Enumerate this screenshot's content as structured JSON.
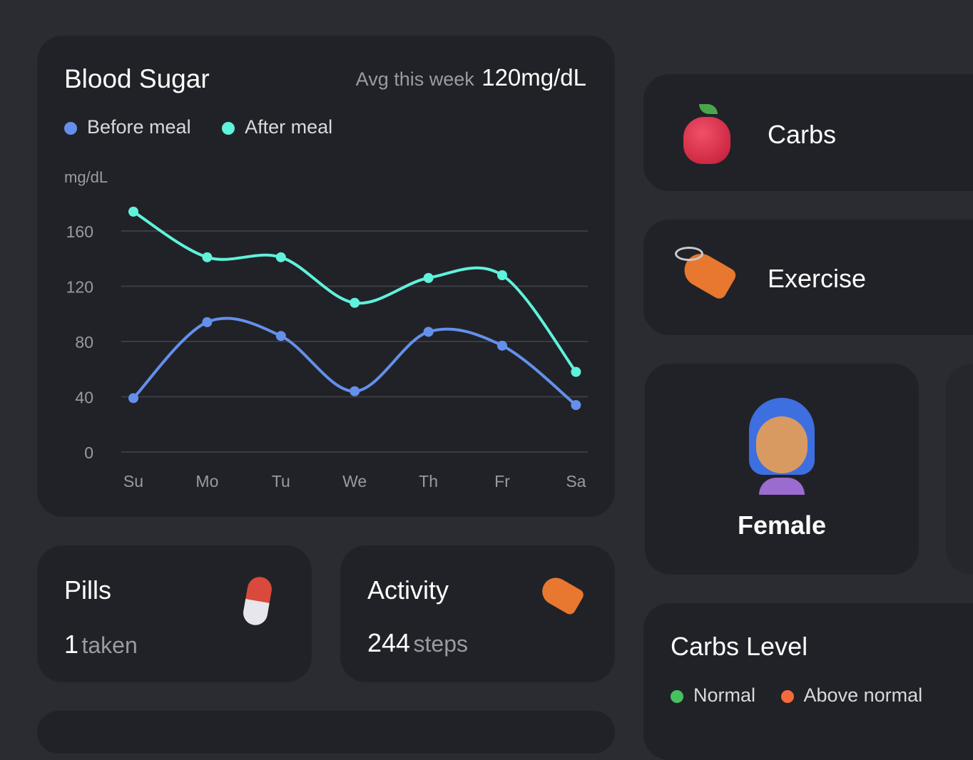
{
  "blood_sugar": {
    "title": "Blood Sugar",
    "avg_label": "Avg this week",
    "avg_value": "120mg/dL"
  },
  "chart_data": {
    "type": "line",
    "ylabel": "mg/dL",
    "categories": [
      "Su",
      "Mo",
      "Tu",
      "We",
      "Th",
      "Fr",
      "Sa"
    ],
    "ylim": [
      0,
      160
    ],
    "yticks": [
      0,
      40,
      80,
      120,
      160
    ],
    "grid": true,
    "legend": "top-left",
    "series": [
      {
        "name": "Before meal",
        "color": "#6490ec",
        "values": [
          39,
          94,
          84,
          44,
          87,
          77,
          34
        ]
      },
      {
        "name": "After meal",
        "color": "#5ff2dc",
        "values": [
          174,
          141,
          141,
          108,
          126,
          128,
          58
        ]
      }
    ]
  },
  "pills": {
    "title": "Pills",
    "count": "1",
    "unit": "taken",
    "icon": "pill-icon"
  },
  "activity": {
    "title": "Activity",
    "count": "244",
    "unit": "steps",
    "icon": "whistle-icon"
  },
  "carbs": {
    "label": "Carbs",
    "icon": "apple-icon"
  },
  "exercise": {
    "label": "Exercise",
    "icon": "whistle-icon"
  },
  "gender": {
    "label": "Female",
    "icon": "female-avatar-icon"
  },
  "carbs_level": {
    "title": "Carbs Level",
    "legend": [
      {
        "label": "Normal",
        "color": "#47c060"
      },
      {
        "label": "Above normal",
        "color": "#f46a3c"
      }
    ]
  }
}
